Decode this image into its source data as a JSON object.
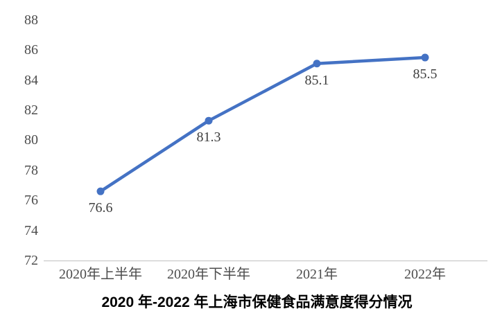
{
  "chart_data": {
    "type": "line",
    "title": "2020 年-2022 年上海市保健食品满意度得分情况",
    "categories": [
      "2020年上半年",
      "2020年下半年",
      "2021年",
      "2022年"
    ],
    "values": [
      76.6,
      81.3,
      85.1,
      85.5
    ],
    "data_labels": [
      "76.6",
      "81.3",
      "85.1",
      "85.5"
    ],
    "xlabel": "",
    "ylabel": "",
    "ylim": [
      72,
      88
    ],
    "ytick_interval": 2,
    "yticks": [
      "72",
      "74",
      "76",
      "78",
      "80",
      "82",
      "84",
      "86",
      "88"
    ],
    "grid": false,
    "legend": "none",
    "marker": "circle",
    "colors": {
      "line": "#4472C4",
      "marker": "#4472C4",
      "axis_line": "#C9C9C9",
      "tick_label": "#4D4D4D",
      "data_label": "#404040",
      "title": "#000000",
      "background": "#FFFFFF"
    }
  }
}
